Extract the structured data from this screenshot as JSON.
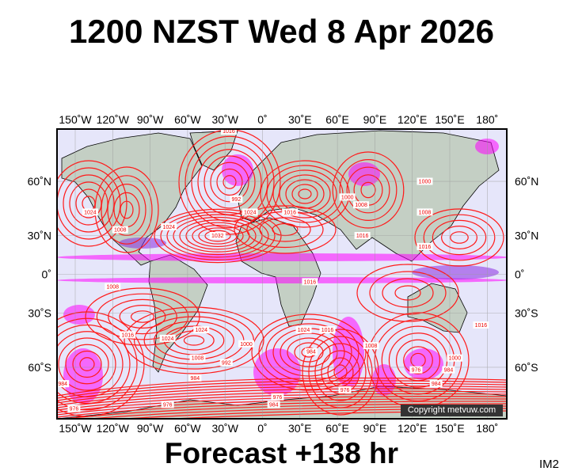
{
  "title": "1200 NZST Wed 8 Apr 2026",
  "footer": "Forecast +138 hr",
  "image_code": "IM2",
  "copyright": "Copyright metvuw.com",
  "colors": {
    "ocean": "#e6e6fa",
    "land": "#c4cfc4",
    "isobar": "#ff1a1a",
    "rain_light": "#ff00ff",
    "rain_medium": "#8a2be2",
    "rain_heavy": "#0000ff",
    "frame": "#000000"
  },
  "axes": {
    "lon_ticks": [
      "150˚W",
      "120˚W",
      "90˚W",
      "60˚W",
      "30˚W",
      "0˚",
      "30˚E",
      "60˚E",
      "90˚E",
      "120˚E",
      "150˚E",
      "180˚"
    ],
    "lat_ticks": [
      "60˚N",
      "30˚N",
      "0˚",
      "30˚S",
      "60˚S"
    ],
    "projection": "mercator",
    "grid": true
  },
  "isobar_labels": [
    {
      "value": "1032",
      "lon": -36,
      "lat": 30
    },
    {
      "value": "1024",
      "lon": -138,
      "lat": 45
    },
    {
      "value": "1016",
      "lon": -27,
      "lat": 75
    },
    {
      "value": "992",
      "lon": -21,
      "lat": 52
    },
    {
      "value": "1024",
      "lon": -10,
      "lat": 45
    },
    {
      "value": "1016",
      "lon": 22,
      "lat": 45
    },
    {
      "value": "1000",
      "lon": 68,
      "lat": 53
    },
    {
      "value": "1008",
      "lon": 79,
      "lat": 49
    },
    {
      "value": "1016",
      "lon": 80,
      "lat": 30
    },
    {
      "value": "1000",
      "lon": 130,
      "lat": 60
    },
    {
      "value": "1016",
      "lon": 130,
      "lat": 22
    },
    {
      "value": "1008",
      "lon": 130,
      "lat": 45
    },
    {
      "value": "1024",
      "lon": -75,
      "lat": 36
    },
    {
      "value": "1008",
      "lon": -114,
      "lat": 34
    },
    {
      "value": "1008",
      "lon": -120,
      "lat": -10
    },
    {
      "value": "1016",
      "lon": -108,
      "lat": -44
    },
    {
      "value": "1024",
      "lon": -76,
      "lat": -46
    },
    {
      "value": "1024",
      "lon": -49,
      "lat": -41
    },
    {
      "value": "1008",
      "lon": -52,
      "lat": -56
    },
    {
      "value": "992",
      "lon": -29,
      "lat": -58
    },
    {
      "value": "1000",
      "lon": -13,
      "lat": -49
    },
    {
      "value": "984",
      "lon": -54,
      "lat": -64
    },
    {
      "value": "976",
      "lon": -76,
      "lat": -72
    },
    {
      "value": "976",
      "lon": -151,
      "lat": -73
    },
    {
      "value": "984",
      "lon": -160,
      "lat": -66
    },
    {
      "value": "1024",
      "lon": 33,
      "lat": -41
    },
    {
      "value": "984",
      "lon": 39,
      "lat": -53
    },
    {
      "value": "976",
      "lon": 12,
      "lat": -70
    },
    {
      "value": "984",
      "lon": 9,
      "lat": -72
    },
    {
      "value": "1016",
      "lon": 38,
      "lat": -6
    },
    {
      "value": "1016",
      "lon": 52,
      "lat": -41
    },
    {
      "value": "976",
      "lon": 66,
      "lat": -68
    },
    {
      "value": "1008",
      "lon": 87,
      "lat": -50
    },
    {
      "value": "976",
      "lon": 123,
      "lat": -61
    },
    {
      "value": "984",
      "lon": 149,
      "lat": -61
    },
    {
      "value": "984",
      "lon": 139,
      "lat": -66
    },
    {
      "value": "1000",
      "lon": 154,
      "lat": -56
    },
    {
      "value": "1016",
      "lon": 175,
      "lat": -38
    }
  ]
}
